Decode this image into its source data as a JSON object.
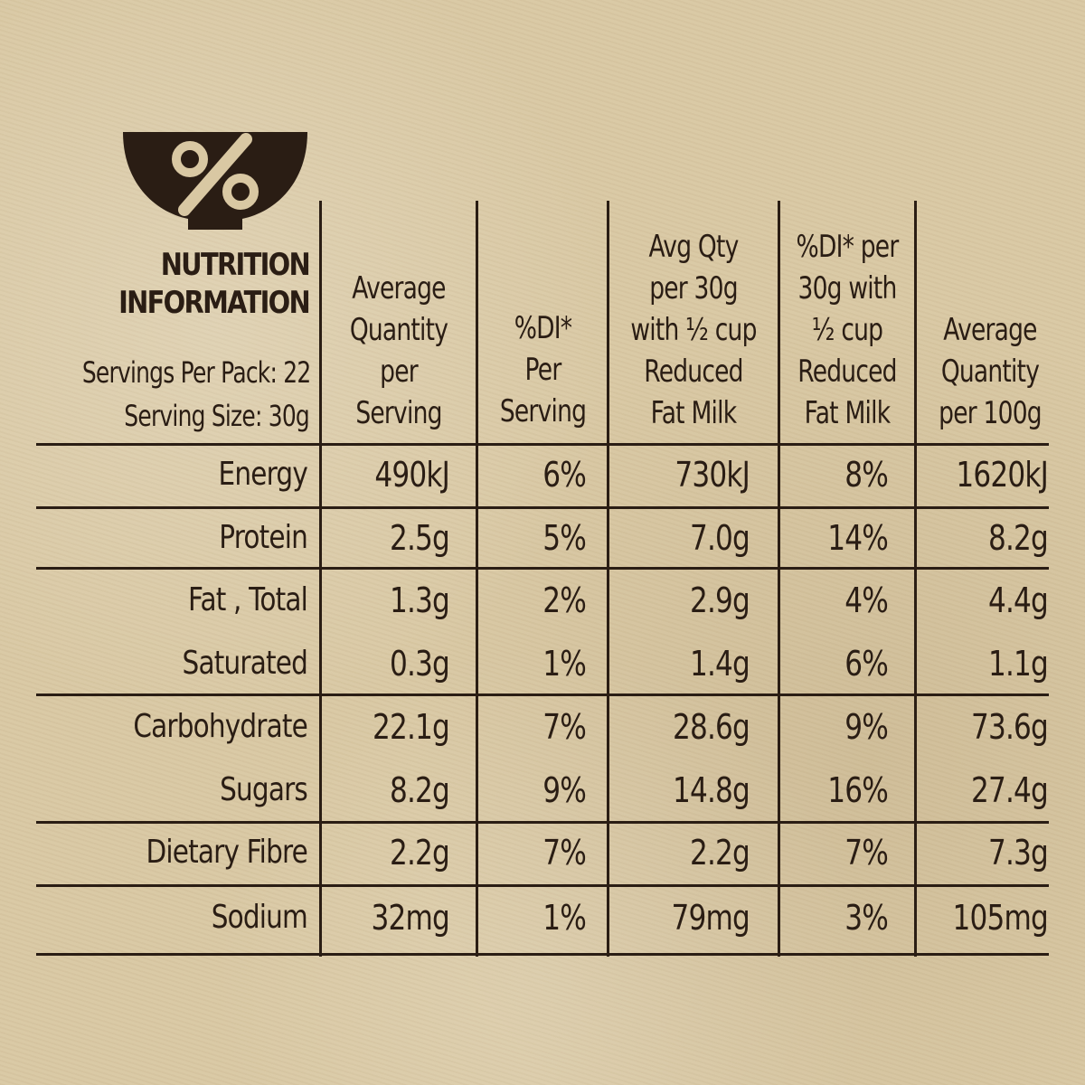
{
  "icon": "percent-bowl-icon",
  "header": {
    "title_line1": "NUTRITION",
    "title_line2": "INFORMATION",
    "servings_per_pack": "Servings Per Pack: 22",
    "serving_size": "Serving Size: 30g"
  },
  "columns": [
    "Average\nQuantity\nper\nServing",
    "%DI*\nPer\nServing",
    "Avg Qty\nper 30g\nwith ½ cup\nReduced\nFat Milk",
    "%DI* per\n30g with\n½ cup\nReduced\nFat Milk",
    "Average\nQuantity\nper 100g"
  ],
  "rows": [
    {
      "label": "Energy",
      "values": [
        "490kJ",
        "6%",
        "730kJ",
        "8%",
        "1620kJ"
      ]
    },
    {
      "label": "Protein",
      "values": [
        "2.5g",
        "5%",
        "7.0g",
        "14%",
        "8.2g"
      ]
    },
    {
      "label": "Fat , Total",
      "values": [
        "1.3g",
        "2%",
        "2.9g",
        "4%",
        "4.4g"
      ]
    },
    {
      "label": "Saturated",
      "values": [
        "0.3g",
        "1%",
        "1.4g",
        "6%",
        "1.1g"
      ]
    },
    {
      "label": "Carbohydrate",
      "values": [
        "22.1g",
        "7%",
        "28.6g",
        "9%",
        "73.6g"
      ]
    },
    {
      "label": "Sugars",
      "values": [
        "8.2g",
        "9%",
        "14.8g",
        "16%",
        "27.4g"
      ]
    },
    {
      "label": "Dietary Fibre",
      "values": [
        "2.2g",
        "7%",
        "2.2g",
        "7%",
        "7.3g"
      ]
    },
    {
      "label": "Sodium",
      "values": [
        "32mg",
        "1%",
        "79mg",
        "3%",
        "105mg"
      ]
    }
  ],
  "colors": {
    "background": "#d9c8a3",
    "ink": "#2a1d14"
  }
}
